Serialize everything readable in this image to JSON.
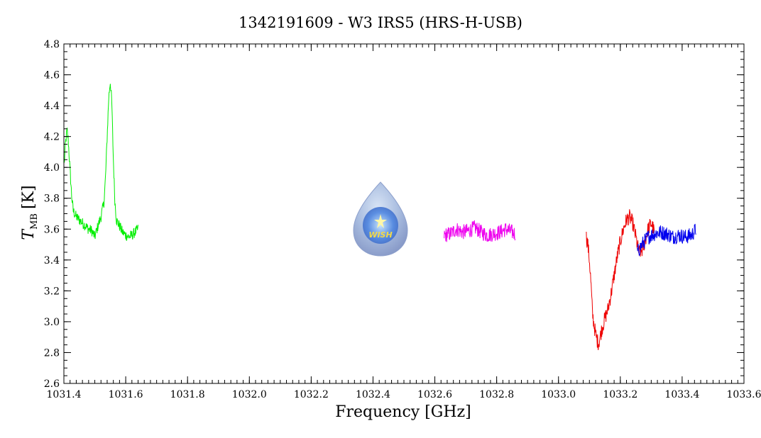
{
  "chart_data": {
    "type": "line",
    "title": "1342191609 - W3 IRS5 (HRS-H-USB)",
    "xlabel": "Frequency [GHz]",
    "ylabel_main": "T",
    "ylabel_sub": "MB",
    "ylabel_unit": "[K]",
    "xlim": [
      1031.4,
      1033.6
    ],
    "ylim": [
      2.6,
      4.8
    ],
    "x_ticks": [
      "1031.4",
      "1031.6",
      "1031.8",
      "1032.0",
      "1032.2",
      "1032.4",
      "1032.6",
      "1032.8",
      "1033.0",
      "1033.2",
      "1033.4",
      "1033.6"
    ],
    "y_ticks": [
      "2.6",
      "2.8",
      "3.0",
      "3.2",
      "3.4",
      "3.6",
      "3.8",
      "4.0",
      "4.2",
      "4.4",
      "4.6",
      "4.8"
    ],
    "grid": false,
    "series": [
      {
        "color": "#00ee00",
        "x": [
          1031.401,
          1031.405,
          1031.41,
          1031.414,
          1031.42,
          1031.425,
          1031.43,
          1031.44,
          1031.45,
          1031.46,
          1031.47,
          1031.48,
          1031.49,
          1031.5,
          1031.51,
          1031.52,
          1031.53,
          1031.535,
          1031.54,
          1031.545,
          1031.55,
          1031.555,
          1031.56,
          1031.565,
          1031.57,
          1031.58,
          1031.59,
          1031.6,
          1031.61,
          1031.62,
          1031.63,
          1031.64
        ],
        "y": [
          4.02,
          4.15,
          4.24,
          4.18,
          3.98,
          3.82,
          3.72,
          3.68,
          3.66,
          3.64,
          3.62,
          3.6,
          3.59,
          3.55,
          3.62,
          3.68,
          3.78,
          3.95,
          4.2,
          4.45,
          4.56,
          4.42,
          4.05,
          3.78,
          3.66,
          3.62,
          3.58,
          3.56,
          3.55,
          3.56,
          3.58,
          3.6
        ],
        "noise": 0.035
      },
      {
        "color": "#ee00ee",
        "x": [
          1032.63,
          1032.65,
          1032.67,
          1032.69,
          1032.71,
          1032.73,
          1032.75,
          1032.77,
          1032.79,
          1032.81,
          1032.83,
          1032.86
        ],
        "y": [
          3.56,
          3.57,
          3.6,
          3.58,
          3.59,
          3.61,
          3.58,
          3.56,
          3.57,
          3.58,
          3.6,
          3.57
        ],
        "noise": 0.05
      },
      {
        "color": "#ee0000",
        "x": [
          1033.09,
          1033.095,
          1033.1,
          1033.105,
          1033.11,
          1033.115,
          1033.12,
          1033.125,
          1033.13,
          1033.14,
          1033.15,
          1033.16,
          1033.17,
          1033.18,
          1033.19,
          1033.2,
          1033.21,
          1033.22,
          1033.23,
          1033.24,
          1033.25,
          1033.26,
          1033.27,
          1033.28,
          1033.29,
          1033.3,
          1033.31
        ],
        "y": [
          3.55,
          3.5,
          3.4,
          3.25,
          3.05,
          2.98,
          2.92,
          2.88,
          2.86,
          2.95,
          3.02,
          3.08,
          3.18,
          3.3,
          3.42,
          3.52,
          3.6,
          3.66,
          3.68,
          3.64,
          3.55,
          3.45,
          3.46,
          3.52,
          3.6,
          3.64,
          3.58
        ],
        "noise": 0.05
      },
      {
        "color": "#0000ee",
        "x": [
          1033.255,
          1033.27,
          1033.29,
          1033.31,
          1033.33,
          1033.35,
          1033.37,
          1033.39,
          1033.41,
          1033.43,
          1033.445
        ],
        "y": [
          3.45,
          3.5,
          3.55,
          3.57,
          3.58,
          3.57,
          3.55,
          3.56,
          3.55,
          3.56,
          3.6
        ],
        "noise": 0.05
      }
    ]
  },
  "logo": {
    "text": "WISH"
  }
}
